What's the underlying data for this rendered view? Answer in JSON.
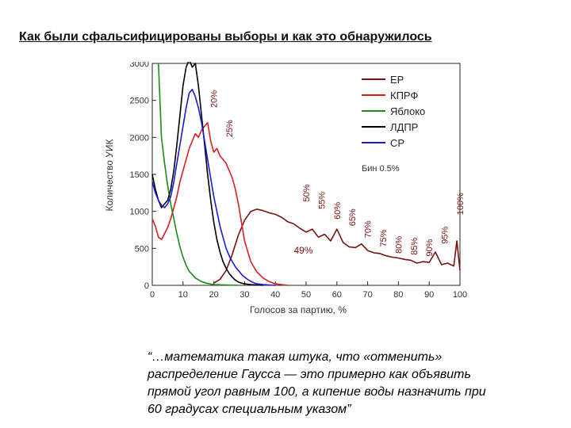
{
  "title": "Как были сфальсифицированы выборы и как это обнаружилось",
  "chart_data": {
    "type": "line",
    "xlabel": "Голосов за партию, %",
    "ylabel": "Количество УИК",
    "xlim": [
      0,
      100
    ],
    "ylim": [
      0,
      3000
    ],
    "xticks": [
      "0",
      "10",
      "20",
      "30",
      "40",
      "50",
      "60",
      "70",
      "80",
      "90",
      "100"
    ],
    "yticks": [
      "0",
      "500",
      "1000",
      "1500",
      "2000",
      "2500",
      "3000"
    ],
    "grid": false,
    "legend_position": "top-right",
    "bin_note": "Бин 0.5%",
    "series": [
      {
        "name": "ЕР",
        "color": "#7a1010",
        "x": [
          20,
          22,
          24,
          26,
          28,
          30,
          32,
          34,
          36,
          38,
          40,
          42,
          44,
          46,
          48,
          50,
          52,
          54,
          56,
          58,
          60,
          62,
          64,
          66,
          68,
          70,
          72,
          74,
          76,
          78,
          80,
          82,
          84,
          86,
          88,
          90,
          92,
          94,
          96,
          98,
          99,
          100
        ],
        "y": [
          30,
          80,
          200,
          420,
          680,
          880,
          1000,
          1030,
          1010,
          980,
          960,
          920,
          860,
          830,
          770,
          720,
          760,
          650,
          690,
          600,
          760,
          580,
          520,
          510,
          560,
          470,
          440,
          430,
          400,
          380,
          370,
          350,
          340,
          300,
          320,
          310,
          450,
          280,
          300,
          260,
          600,
          200
        ]
      },
      {
        "name": "КПРФ",
        "color": "#d42020",
        "x": [
          0,
          1,
          2,
          3,
          4,
          5,
          6,
          7,
          8,
          9,
          10,
          11,
          12,
          13,
          14,
          15,
          16,
          17,
          18,
          19,
          20,
          21,
          22,
          23,
          24,
          25,
          26,
          27,
          28,
          29,
          30,
          32,
          34,
          36,
          38,
          40,
          42,
          44
        ],
        "y": [
          900,
          800,
          650,
          620,
          700,
          780,
          900,
          1050,
          1200,
          1400,
          1550,
          1700,
          1850,
          1950,
          2050,
          2000,
          2100,
          2150,
          2200,
          1950,
          1800,
          1850,
          1750,
          1700,
          1650,
          1550,
          1450,
          1300,
          1100,
          850,
          600,
          320,
          180,
          100,
          50,
          20,
          10,
          0
        ]
      },
      {
        "name": "Яблоко",
        "color": "#1a8a1a",
        "x": [
          2,
          2.5,
          3,
          4,
          5,
          6,
          7,
          8,
          9,
          10,
          11,
          12,
          14,
          16,
          18,
          20,
          24,
          28
        ],
        "y": [
          3000,
          2500,
          2000,
          1650,
          1350,
          1100,
          900,
          700,
          520,
          380,
          270,
          190,
          100,
          50,
          25,
          10,
          5,
          0
        ]
      },
      {
        "name": "ЛДПР",
        "color": "#000000",
        "x": [
          0,
          1,
          2,
          3,
          4,
          5,
          6,
          7,
          8,
          9,
          10,
          11,
          12,
          13,
          14,
          15,
          16,
          17,
          18,
          19,
          20,
          21,
          22,
          23,
          24,
          25,
          26,
          27,
          28,
          29,
          30,
          32,
          34,
          36
        ],
        "y": [
          1500,
          1300,
          1150,
          1050,
          1100,
          1150,
          1300,
          1550,
          1900,
          2300,
          2700,
          2950,
          3050,
          2950,
          3000,
          2700,
          2300,
          1900,
          1500,
          1150,
          850,
          620,
          450,
          320,
          230,
          160,
          110,
          70,
          45,
          30,
          20,
          10,
          5,
          0
        ]
      },
      {
        "name": "СР",
        "color": "#1a1ad8",
        "x": [
          0,
          1,
          2,
          3,
          4,
          5,
          6,
          7,
          8,
          9,
          10,
          11,
          12,
          13,
          14,
          15,
          16,
          17,
          18,
          19,
          20,
          21,
          22,
          23,
          24,
          25,
          26,
          27,
          28,
          29,
          30,
          31,
          32,
          33,
          34,
          36,
          38,
          40
        ],
        "y": [
          1400,
          1250,
          1150,
          1080,
          1050,
          1100,
          1200,
          1400,
          1650,
          1900,
          2150,
          2400,
          2600,
          2650,
          2550,
          2400,
          2200,
          1950,
          1700,
          1450,
          1200,
          1000,
          800,
          650,
          500,
          400,
          320,
          250,
          200,
          150,
          110,
          80,
          55,
          35,
          20,
          10,
          5,
          0
        ]
      }
    ],
    "annotations": [
      {
        "text": "20%",
        "x": 20,
        "y": 2400
      },
      {
        "text": "25%",
        "x": 25,
        "y": 2000
      },
      {
        "text": "50%",
        "x": 50,
        "y": 1130
      },
      {
        "text": "55%",
        "x": 55,
        "y": 1030
      },
      {
        "text": "60%",
        "x": 60,
        "y": 890
      },
      {
        "text": "65%",
        "x": 65,
        "y": 800
      },
      {
        "text": "70%",
        "x": 70,
        "y": 640
      },
      {
        "text": "75%",
        "x": 75,
        "y": 520
      },
      {
        "text": "80%",
        "x": 80,
        "y": 430
      },
      {
        "text": "85%",
        "x": 85,
        "y": 410
      },
      {
        "text": "90%",
        "x": 90,
        "y": 390
      },
      {
        "text": "95%",
        "x": 95,
        "y": 560
      },
      {
        "text": "100%",
        "x": 100,
        "y": 950
      },
      {
        "text": "49%",
        "x": 46,
        "y": 430
      }
    ]
  },
  "quote": {
    "lines": [
      "“…математика такая штука, что «отменить»",
      "распределение Гаусса — это примерно как объявить",
      "прямой угол равным 100, а кипение воды назначить при",
      "60 градусах специальным указом”"
    ]
  }
}
